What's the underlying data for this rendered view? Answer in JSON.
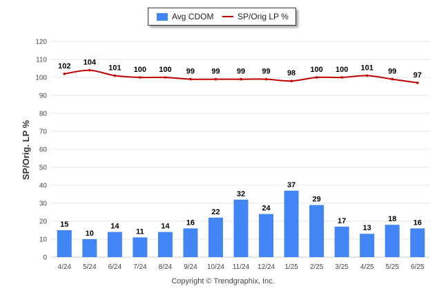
{
  "chart_data": {
    "type": "bar",
    "categories": [
      "4/24",
      "5/24",
      "6/24",
      "7/24",
      "8/24",
      "9/24",
      "10/24",
      "11/24",
      "12/24",
      "1/25",
      "2/25",
      "3/25",
      "4/25",
      "5/25",
      "6/25"
    ],
    "series": [
      {
        "name": "Avg CDOM",
        "type": "bar",
        "color": "#4285f4",
        "values": [
          15,
          10,
          14,
          11,
          14,
          16,
          22,
          32,
          24,
          37,
          29,
          17,
          13,
          18,
          16
        ]
      },
      {
        "name": "SP/Orig LP %",
        "type": "line",
        "color": "#c00000",
        "values": [
          102,
          104,
          101,
          100,
          100,
          99,
          99,
          99,
          99,
          98,
          100,
          100,
          101,
          99,
          97
        ]
      }
    ],
    "ylabel": "SP/Orig. LP %",
    "ylim": [
      0,
      120
    ],
    "yticks": [
      0,
      10,
      20,
      30,
      40,
      50,
      60,
      70,
      80,
      90,
      100,
      110,
      120
    ],
    "grid": true,
    "legend": "top-center"
  },
  "legend": {
    "bar_label": "Avg CDOM",
    "line_label": "SP/Orig LP %"
  },
  "footer": {
    "copyright": "Copyright © Trendgraphix, Inc."
  },
  "colors": {
    "bar": "#4285f4",
    "line": "#c00000",
    "grid": "#e6e6e6"
  }
}
